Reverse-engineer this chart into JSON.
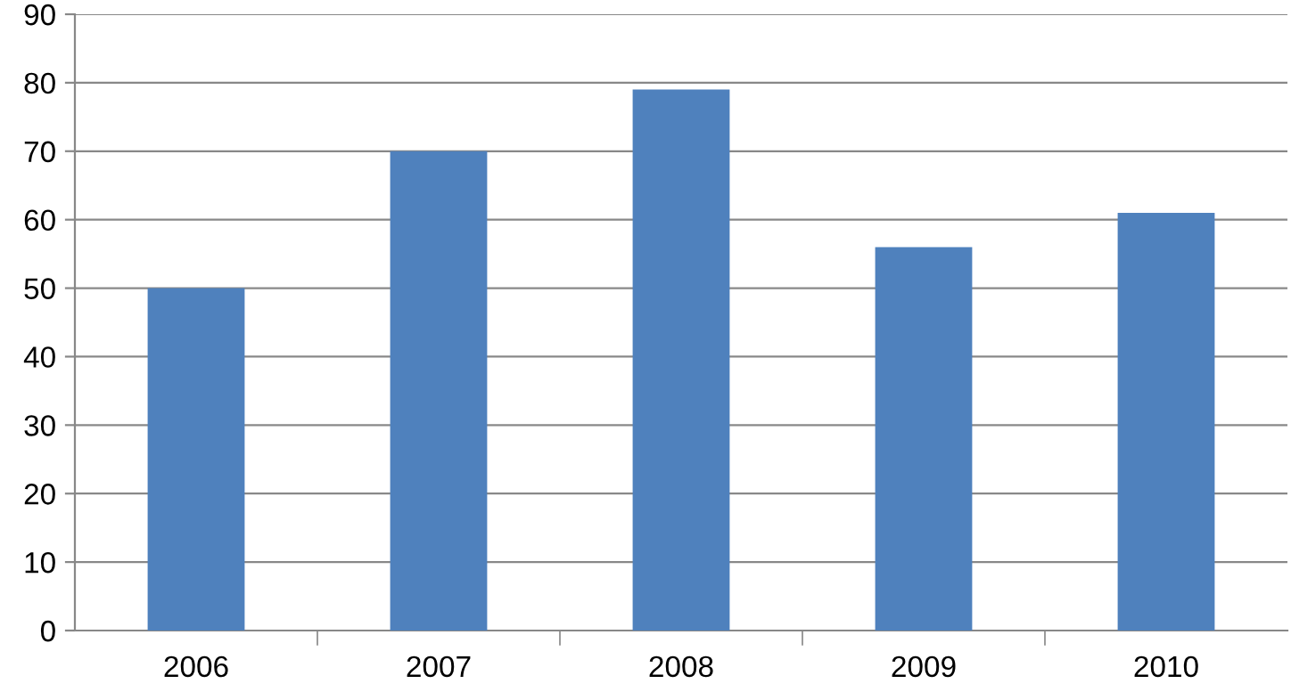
{
  "chart_data": {
    "type": "bar",
    "categories": [
      "2006",
      "2007",
      "2008",
      "2009",
      "2010"
    ],
    "values": [
      50,
      70,
      79,
      56,
      61
    ],
    "color": "#4f81bd",
    "ylim": [
      0,
      90
    ],
    "yticks": [
      0,
      10,
      20,
      30,
      40,
      50,
      60,
      70,
      80,
      90
    ],
    "grid": "y",
    "legend": false
  }
}
